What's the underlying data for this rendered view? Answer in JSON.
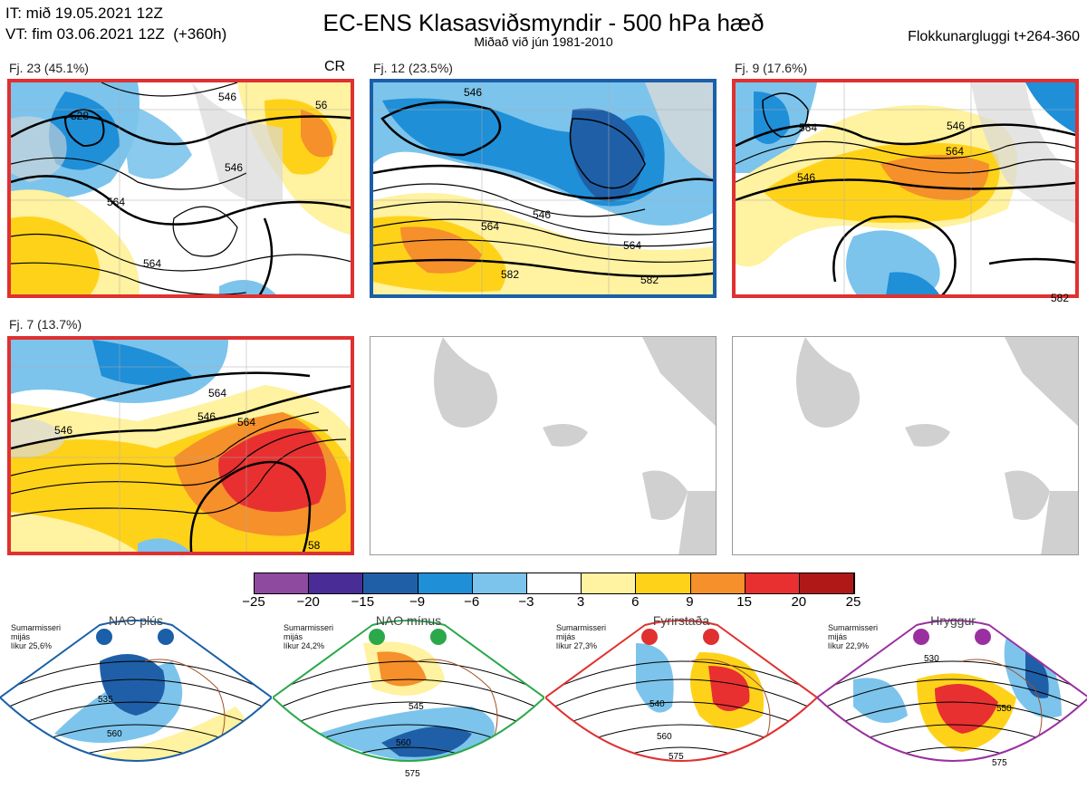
{
  "header": {
    "it_line": "IT: mið 19.05.2021 12Z",
    "vt_line": "VT: fim 03.06.2021 12Z  (+360h)",
    "title": "EC-ENS Klasasviðsmyndir - 500 hPa hæð",
    "subtitle": "Miðað við jún 1981-2010",
    "window": "Flokkunargluggi t+264-360"
  },
  "panels": [
    {
      "label": "Fj. 23 (45.1%)",
      "tag": "CR",
      "frame_color": "#e03030",
      "contours": [
        "528",
        "546",
        "564",
        "546",
        "564",
        "56"
      ]
    },
    {
      "label": "Fj. 12 (23.5%)",
      "tag": "",
      "frame_color": "#1a5fa8",
      "contours": [
        "546",
        "546",
        "564",
        "564",
        "582",
        "582"
      ]
    },
    {
      "label": "Fj. 9 (17.6%)",
      "tag": "",
      "frame_color": "#e03030",
      "contours": [
        "546",
        "564",
        "546",
        "564",
        "582"
      ]
    },
    {
      "label": "Fj. 7 (13.7%)",
      "tag": "",
      "frame_color": "#e03030",
      "contours": [
        "546",
        "564",
        "546",
        "564",
        "58"
      ]
    }
  ],
  "colorbar": {
    "colors": [
      "#8e4a9e",
      "#4a2c96",
      "#1f5fa8",
      "#1f8fd8",
      "#7cc4ec",
      "#ffffff",
      "#fff2a0",
      "#ffd21a",
      "#f5902a",
      "#e83030",
      "#b01818"
    ],
    "ticks": [
      "−25",
      "−20",
      "−15",
      "−9",
      "−6",
      "−3",
      "3",
      "6",
      "9",
      "15",
      "20",
      "25"
    ]
  },
  "regimes": [
    {
      "name": "NAO plús",
      "line1": "Sumarmisseri",
      "line2": "mijás",
      "line3": "líkur 25,6%",
      "color": "#1a5fa8",
      "labels": [
        "535",
        "560"
      ]
    },
    {
      "name": "NAO mínus",
      "line1": "Sumarmisseri",
      "line2": "mijás",
      "line3": "líkur 24,2%",
      "color": "#2aa84a",
      "labels": [
        "545",
        "560",
        "575"
      ]
    },
    {
      "name": "Fyrirstaða",
      "line1": "Sumarmisseri",
      "line2": "mijás",
      "line3": "líkur 27,3%",
      "color": "#e03030",
      "labels": [
        "540",
        "560",
        "575"
      ]
    },
    {
      "name": "Hryggur",
      "line1": "Sumarmisseri",
      "line2": "mijás",
      "line3": "líkur 22,9%",
      "color": "#9a30a0",
      "labels": [
        "530",
        "550",
        "575"
      ]
    }
  ]
}
